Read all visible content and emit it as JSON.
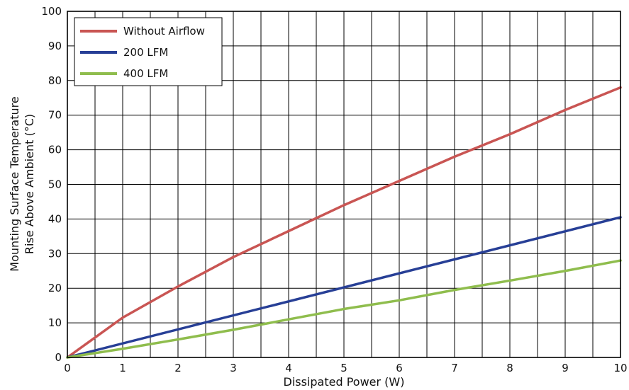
{
  "chart_data": {
    "type": "line",
    "title": "",
    "xlabel": "Dissipated Power (W)",
    "ylabel_lines": [
      "Mounting Surface Temperature",
      "Rise Above  Ambient (°C)"
    ],
    "xlim": [
      0,
      10
    ],
    "ylim": [
      0,
      100
    ],
    "x_ticks": [
      0,
      1,
      2,
      3,
      4,
      5,
      6,
      7,
      8,
      9,
      10
    ],
    "y_ticks": [
      0,
      10,
      20,
      30,
      40,
      50,
      60,
      70,
      80,
      90,
      100
    ],
    "x_minor_step": 0.5,
    "grid": true,
    "legend_position": "top-left",
    "series": [
      {
        "name": "Without Airflow",
        "color": "#c95553",
        "x": [
          0,
          1,
          2,
          3,
          4,
          5,
          6,
          7,
          8,
          9,
          10
        ],
        "y": [
          0,
          11.5,
          20.5,
          29,
          36.5,
          44,
          51,
          58,
          64.5,
          71.5,
          78
        ]
      },
      {
        "name": "200 LFM",
        "color": "#273f96",
        "x": [
          0,
          10
        ],
        "y": [
          0,
          40.5
        ]
      },
      {
        "name": "400 LFM",
        "color": "#8fbd4d",
        "x": [
          0,
          1,
          2,
          3,
          4,
          5,
          6,
          7,
          8,
          9,
          10
        ],
        "y": [
          0,
          2.5,
          5.2,
          8,
          11,
          14,
          16.5,
          19.5,
          22.2,
          25,
          28
        ]
      }
    ]
  }
}
